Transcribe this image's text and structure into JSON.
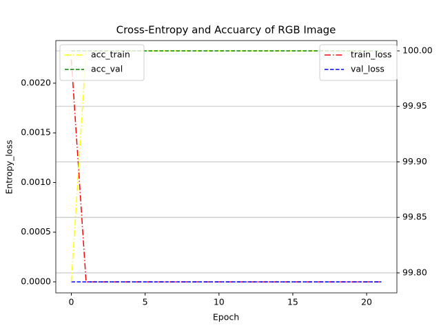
{
  "chart_data": {
    "type": "line",
    "title": "Cross-Entropy and Accuarcy of RGB Image",
    "xlabel": "Epoch",
    "ylabel": "Entropy_loss",
    "x": [
      0,
      1,
      2,
      3,
      4,
      5,
      6,
      7,
      8,
      9,
      10,
      11,
      12,
      13,
      14,
      15,
      16,
      17,
      18,
      19,
      20,
      21
    ],
    "series": [
      {
        "name": "train_loss",
        "color": "#ff0000",
        "dash": "dashdot",
        "axis": "y",
        "values": [
          0.00224,
          0,
          0,
          0,
          0,
          0,
          0,
          0,
          0,
          0,
          0,
          0,
          0,
          0,
          0,
          0,
          0,
          0,
          0,
          0,
          0,
          0
        ]
      },
      {
        "name": "val_loss",
        "color": "#0000ff",
        "dash": "dashed",
        "axis": "y",
        "values": [
          0,
          0,
          0,
          0,
          0,
          0,
          0,
          0,
          0,
          0,
          0,
          0,
          0,
          0,
          0,
          0,
          0,
          0,
          0,
          0,
          0,
          0
        ]
      },
      {
        "name": "acc_train",
        "color": "#ffff00",
        "dash": "dashdot",
        "axis": "y2",
        "values": [
          99.792,
          100,
          100,
          100,
          100,
          100,
          100,
          100,
          100,
          100,
          100,
          100,
          100,
          100,
          100,
          100,
          100,
          100,
          100,
          100,
          100,
          100
        ]
      },
      {
        "name": "acc_val",
        "color": "#008000",
        "dash": "dashed",
        "axis": "y2",
        "values": [
          100,
          100,
          100,
          100,
          100,
          100,
          100,
          100,
          100,
          100,
          100,
          100,
          100,
          100,
          100,
          100,
          100,
          100,
          100,
          100,
          100,
          100
        ]
      }
    ],
    "xlim": [
      -1.05,
      22.05
    ],
    "xticks": [
      0,
      5,
      10,
      15,
      20
    ],
    "ylim": [
      -0.000111,
      0.002429
    ],
    "yticks": [
      {
        "value": 0,
        "label": "0.0000"
      },
      {
        "value": 0.0005,
        "label": "0.0005"
      },
      {
        "value": 0.001,
        "label": "0.0010"
      },
      {
        "value": 0.0015,
        "label": "0.0015"
      },
      {
        "value": 0.002,
        "label": "0.0020"
      }
    ],
    "y2lim": [
      99.782,
      100.0093
    ],
    "y2ticks": [
      {
        "value": 99.8,
        "label": "99.80"
      },
      {
        "value": 99.85,
        "label": "99.85"
      },
      {
        "value": 99.9,
        "label": "99.90"
      },
      {
        "value": 99.95,
        "label": "99.95"
      },
      {
        "value": 100,
        "label": "100.00"
      }
    ],
    "grid": "y2",
    "legend_loc": "upper right",
    "legend2_loc": "upper left"
  }
}
